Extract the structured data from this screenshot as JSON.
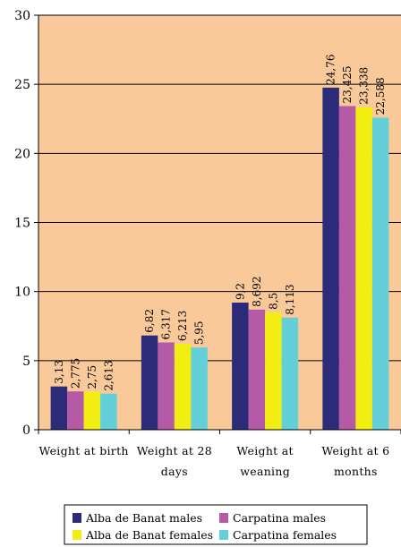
{
  "chart_data": {
    "type": "bar",
    "categories": [
      [
        "Weight at birth"
      ],
      [
        "Weight at 28",
        "days"
      ],
      [
        "Weight at",
        "weaning"
      ],
      [
        "Weight at 6",
        "months"
      ]
    ],
    "series": [
      {
        "name": "Alba de Banat males",
        "color": "#2b2b7a",
        "values": [
          3.13,
          6.82,
          9.2,
          24.76
        ],
        "labels": [
          "3,13",
          "6,82",
          "9,2",
          "24,76"
        ]
      },
      {
        "name": "Carpatina males",
        "color": "#b45aa6",
        "values": [
          2.775,
          6.317,
          8.692,
          23.425
        ],
        "labels": [
          "2,775",
          "6,317",
          "8,692",
          "23,425"
        ]
      },
      {
        "name": "Alba de Banat females",
        "color": "#f3ee11",
        "values": [
          2.75,
          6.213,
          8.5,
          23.338
        ],
        "labels": [
          "2,75",
          "6,213",
          "8,5",
          "23,338"
        ]
      },
      {
        "name": "Carpatina females",
        "color": "#63cfd8",
        "values": [
          2.613,
          5.95,
          8.113,
          22.588
        ],
        "labels": [
          "2,613",
          "5,95",
          "8,113",
          "22,588"
        ]
      }
    ],
    "ylim": [
      0,
      30
    ],
    "yticks": [
      0,
      5,
      10,
      15,
      20,
      25,
      30
    ],
    "grid": true,
    "plot_background": "#f9c99a",
    "legend_position": "bottom",
    "title": "",
    "xlabel": "",
    "ylabel": ""
  }
}
